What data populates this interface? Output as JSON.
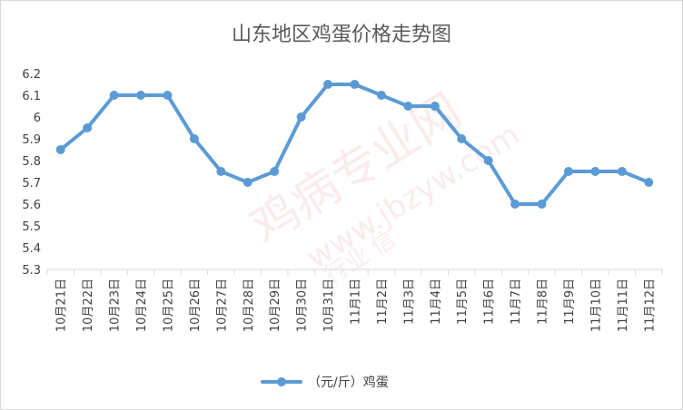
{
  "chart_data": {
    "type": "line",
    "title": "山东地区鸡蛋价格走势图",
    "categories": [
      "10月21日",
      "10月22日",
      "10月23日",
      "10月24日",
      "10月25日",
      "10月26日",
      "10月27日",
      "10月28日",
      "10月29日",
      "10月30日",
      "10月31日",
      "11月1日",
      "11月2日",
      "11月3日",
      "11月4日",
      "11月5日",
      "11月6日",
      "11月7日",
      "11月8日",
      "11月9日",
      "11月10日",
      "11月11日",
      "11月12日"
    ],
    "series": [
      {
        "name": "（元/斤）鸡蛋",
        "values": [
          5.85,
          5.95,
          6.1,
          6.1,
          6.1,
          5.9,
          5.75,
          5.7,
          5.75,
          6.0,
          6.15,
          6.15,
          6.1,
          6.05,
          6.05,
          5.9,
          5.8,
          5.6,
          5.6,
          5.75,
          5.75,
          5.75,
          5.7
        ],
        "color": "#5b9bd5"
      }
    ],
    "ylim": [
      5.3,
      6.2
    ],
    "yticks": [
      "5.3",
      "5.4",
      "5.5",
      "5.6",
      "5.7",
      "5.8",
      "5.9",
      "6",
      "6.1",
      "6.2"
    ],
    "grid": false,
    "legend": "bottom",
    "watermark": {
      "lines": [
        "鸡病专业网",
        "www.jbzyw.com",
        "行业  信"
      ]
    }
  }
}
